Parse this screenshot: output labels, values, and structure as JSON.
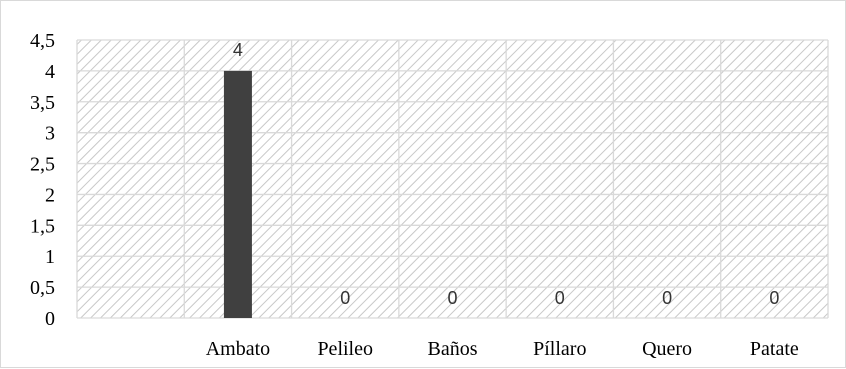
{
  "chart_data": {
    "type": "bar",
    "categories": [
      "",
      "Ambato",
      "Pelileo",
      "Baños",
      "Píllaro",
      "Quero",
      "Patate"
    ],
    "values": [
      null,
      4,
      0,
      0,
      0,
      0,
      0
    ],
    "data_labels": [
      "",
      "4",
      "0",
      "0",
      "0",
      "0",
      "0"
    ],
    "ylim": [
      0,
      4.5
    ],
    "y_ticks": [
      "0",
      "0,5",
      "1",
      "1,5",
      "2",
      "2,5",
      "3",
      "3,5",
      "4",
      "4,5"
    ],
    "grid": true,
    "legend": "none",
    "title": "",
    "xlabel": "",
    "ylabel": ""
  },
  "colors": {
    "bar": "#404040",
    "grid": "#d9d9d9",
    "hatch": "#c8c8c8",
    "label": "#333333"
  }
}
